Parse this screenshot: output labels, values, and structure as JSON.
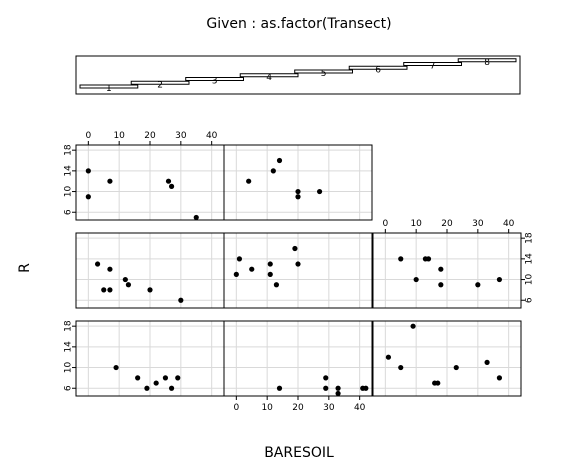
{
  "chart_data": {
    "type": "scatter",
    "title": "Given : as.factor(Transect)",
    "xlabel": "BARESOIL",
    "ylabel": "R",
    "xlim": [
      -4,
      44
    ],
    "ylim": [
      4.5,
      19
    ],
    "x_ticks": [
      0,
      10,
      20,
      30,
      40
    ],
    "y_ticks": [
      6,
      10,
      14,
      18
    ],
    "grid": true,
    "given_levels": [
      "1",
      "2",
      "3",
      "4",
      "5",
      "6",
      "7",
      "8"
    ],
    "panels": [
      {
        "given": "1",
        "points": [
          [
            9,
            10
          ],
          [
            16,
            8
          ],
          [
            19,
            6
          ],
          [
            22,
            7
          ],
          [
            25,
            8
          ],
          [
            27,
            6
          ],
          [
            29,
            8
          ]
        ]
      },
      {
        "given": "2",
        "points": [
          [
            14,
            6
          ],
          [
            29,
            6
          ],
          [
            29,
            8
          ],
          [
            33,
            5
          ],
          [
            33,
            6
          ],
          [
            41,
            6
          ],
          [
            42,
            6
          ]
        ]
      },
      {
        "given": "3",
        "points": [
          [
            1,
            12
          ],
          [
            5,
            10
          ],
          [
            9,
            18
          ],
          [
            16,
            7
          ],
          [
            17,
            7
          ],
          [
            23,
            10
          ],
          [
            33,
            11
          ],
          [
            37,
            8
          ]
        ]
      },
      {
        "given": "4",
        "points": [
          [
            3,
            13
          ],
          [
            5,
            8
          ],
          [
            7,
            12
          ],
          [
            7,
            8
          ],
          [
            12,
            10
          ],
          [
            13,
            9
          ],
          [
            20,
            8
          ],
          [
            30,
            6
          ]
        ]
      },
      {
        "given": "5",
        "points": [
          [
            0,
            11
          ],
          [
            1,
            14
          ],
          [
            5,
            12
          ],
          [
            11,
            13
          ],
          [
            11,
            11
          ],
          [
            13,
            9
          ],
          [
            19,
            16
          ],
          [
            20,
            13
          ]
        ]
      },
      {
        "given": "6",
        "points": [
          [
            5,
            14
          ],
          [
            10,
            10
          ],
          [
            13,
            14
          ],
          [
            14,
            14
          ],
          [
            18,
            12
          ],
          [
            18,
            9
          ],
          [
            30,
            9
          ],
          [
            37,
            10
          ]
        ]
      },
      {
        "given": "7",
        "points": [
          [
            0,
            14
          ],
          [
            0,
            9
          ],
          [
            7,
            12
          ],
          [
            26,
            12
          ],
          [
            27,
            11
          ],
          [
            35,
            5
          ]
        ]
      },
      {
        "given": "8",
        "points": [
          [
            4,
            12
          ],
          [
            12,
            14
          ],
          [
            14,
            16
          ],
          [
            20,
            10
          ],
          [
            20,
            9
          ],
          [
            27,
            10
          ]
        ]
      }
    ]
  }
}
